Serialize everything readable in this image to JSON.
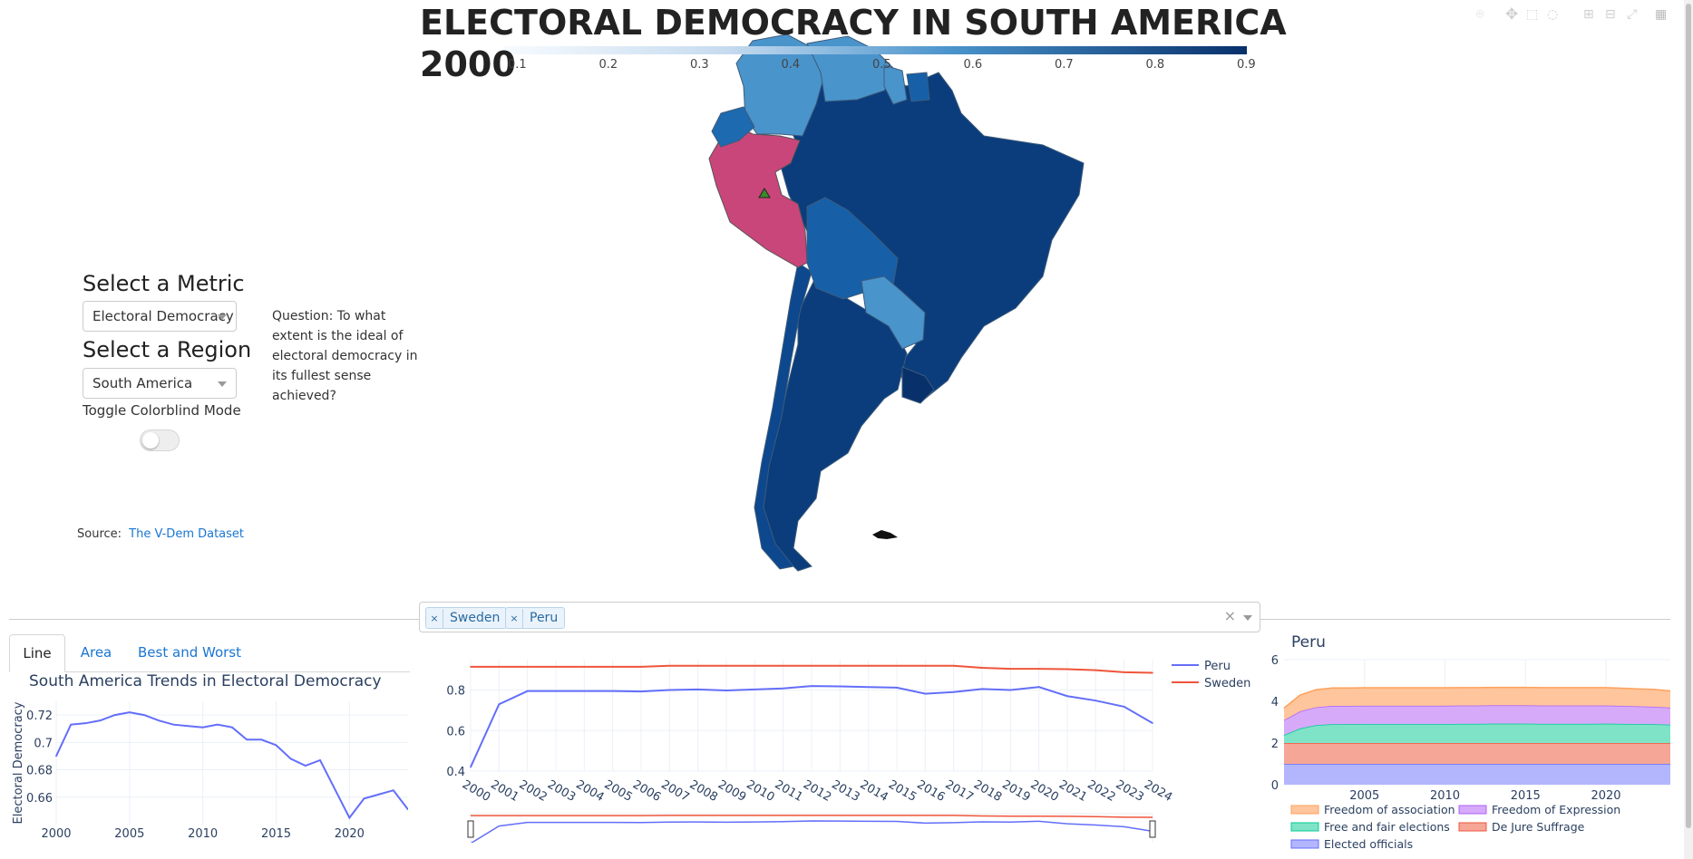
{
  "title_line1": "ELECTORAL DEMOCRACY IN SOUTH AMERICA",
  "title_line2": "2000",
  "colorbar": {
    "ticks": [
      "0.1",
      "0.2",
      "0.3",
      "0.4",
      "0.5",
      "0.6",
      "0.7",
      "0.8",
      "0.9"
    ]
  },
  "controls": {
    "metric_label": "Select a Metric",
    "metric_value": "Electoral Democracy",
    "region_label": "Select a Region",
    "region_value": "South America",
    "colorblind_label": "Toggle Colorblind Mode",
    "question": "Question: To what extent is the ideal of electoral democracy in its fullest sense achieved?",
    "source_prefix": "Source:",
    "source_link": "The V-Dem Dataset"
  },
  "tabs": [
    {
      "label": "Line"
    },
    {
      "label": "Area"
    },
    {
      "label": "Best and Worst"
    }
  ],
  "country_selector": {
    "chips": [
      {
        "label": "Sweden"
      },
      {
        "label": "Peru"
      }
    ],
    "clear": "×"
  },
  "colors": {
    "peru": "#636efa",
    "sweden": "#ef553b",
    "map_high": "#08306b",
    "map_mid": "#4a94cc",
    "highlight": "#c9467a",
    "accent": "#1976d2"
  },
  "chart_data": [
    {
      "type": "line",
      "title": "South America Trends in Electoral Democracy",
      "ylabel": "Electoral Democracy",
      "xlabel": "",
      "x": [
        2000,
        2001,
        2002,
        2003,
        2004,
        2005,
        2006,
        2007,
        2008,
        2009,
        2010,
        2011,
        2012,
        2013,
        2014,
        2015,
        2016,
        2017,
        2018,
        2019,
        2020,
        2021,
        2022,
        2023,
        2024
      ],
      "values": [
        0.69,
        0.713,
        0.714,
        0.716,
        0.72,
        0.722,
        0.72,
        0.716,
        0.713,
        0.712,
        0.711,
        0.713,
        0.711,
        0.702,
        0.702,
        0.698,
        0.688,
        0.683,
        0.687,
        0.666,
        0.645,
        0.659,
        0.662,
        0.665,
        0.651
      ],
      "xticks": [
        "2000",
        "2005",
        "2010",
        "2015",
        "2020"
      ],
      "yticks": [
        "0.66",
        "0.68",
        "0.7",
        "0.72"
      ],
      "ylim": [
        0.64,
        0.73
      ]
    },
    {
      "type": "line",
      "xlabel": "",
      "ylabel": "",
      "x": [
        "2000",
        "2001",
        "2002",
        "2003",
        "2004",
        "2005",
        "2006",
        "2007",
        "2008",
        "2009",
        "2010",
        "2011",
        "2012",
        "2013",
        "2014",
        "2015",
        "2016",
        "2017",
        "2018",
        "2019",
        "2020",
        "2021",
        "2022",
        "2023",
        "2024"
      ],
      "series": [
        {
          "name": "Peru",
          "values": [
            0.42,
            0.73,
            0.795,
            0.795,
            0.795,
            0.795,
            0.793,
            0.8,
            0.803,
            0.798,
            0.803,
            0.808,
            0.82,
            0.818,
            0.815,
            0.812,
            0.782,
            0.79,
            0.805,
            0.8,
            0.815,
            0.77,
            0.748,
            0.718,
            0.637
          ]
        },
        {
          "name": "Sweden",
          "values": [
            0.915,
            0.915,
            0.915,
            0.915,
            0.915,
            0.915,
            0.915,
            0.92,
            0.92,
            0.92,
            0.92,
            0.92,
            0.92,
            0.92,
            0.92,
            0.92,
            0.92,
            0.92,
            0.91,
            0.905,
            0.905,
            0.903,
            0.898,
            0.888,
            0.885
          ]
        }
      ],
      "yticks": [
        "0.4",
        "0.6",
        "0.8"
      ],
      "ylim": [
        0.4,
        0.95
      ],
      "legend": "top-right"
    },
    {
      "type": "area",
      "title": "Peru",
      "xlabel": "",
      "ylabel": "",
      "x": [
        2000,
        2001,
        2002,
        2003,
        2004,
        2005,
        2006,
        2007,
        2008,
        2009,
        2010,
        2011,
        2012,
        2013,
        2014,
        2015,
        2016,
        2017,
        2018,
        2019,
        2020,
        2021,
        2022,
        2023,
        2024
      ],
      "series": [
        {
          "name": "Elected officials",
          "values": [
            1,
            1,
            1,
            1,
            1,
            1,
            1,
            1,
            1,
            1,
            1,
            1,
            1,
            1,
            1,
            1,
            1,
            1,
            1,
            1,
            1,
            1,
            1,
            1,
            1
          ]
        },
        {
          "name": "De Jure Suffrage",
          "values": [
            1,
            1,
            1,
            1,
            1,
            1,
            1,
            1,
            1,
            1,
            1,
            1,
            1,
            1,
            1,
            1,
            1,
            1,
            1,
            1,
            1,
            1,
            1,
            1,
            1
          ]
        },
        {
          "name": "Free and fair elections",
          "values": [
            0.38,
            0.7,
            0.86,
            0.9,
            0.9,
            0.91,
            0.91,
            0.91,
            0.91,
            0.91,
            0.91,
            0.92,
            0.92,
            0.93,
            0.93,
            0.93,
            0.92,
            0.92,
            0.92,
            0.92,
            0.93,
            0.92,
            0.91,
            0.9,
            0.88
          ]
        },
        {
          "name": "Freedom of Expression",
          "values": [
            0.72,
            0.82,
            0.86,
            0.88,
            0.88,
            0.88,
            0.88,
            0.88,
            0.88,
            0.88,
            0.88,
            0.88,
            0.88,
            0.88,
            0.88,
            0.88,
            0.88,
            0.88,
            0.88,
            0.88,
            0.87,
            0.86,
            0.85,
            0.84,
            0.82
          ]
        },
        {
          "name": "Freedom of association",
          "values": [
            0.58,
            0.78,
            0.84,
            0.86,
            0.86,
            0.86,
            0.86,
            0.86,
            0.86,
            0.86,
            0.86,
            0.86,
            0.86,
            0.86,
            0.86,
            0.86,
            0.86,
            0.86,
            0.86,
            0.86,
            0.86,
            0.85,
            0.84,
            0.83,
            0.8
          ]
        }
      ],
      "yticks": [
        "0",
        "2",
        "4",
        "6"
      ],
      "xticks": [
        "2005",
        "2010",
        "2015",
        "2020"
      ],
      "ylim": [
        0,
        6
      ],
      "legend": "bottom"
    }
  ]
}
